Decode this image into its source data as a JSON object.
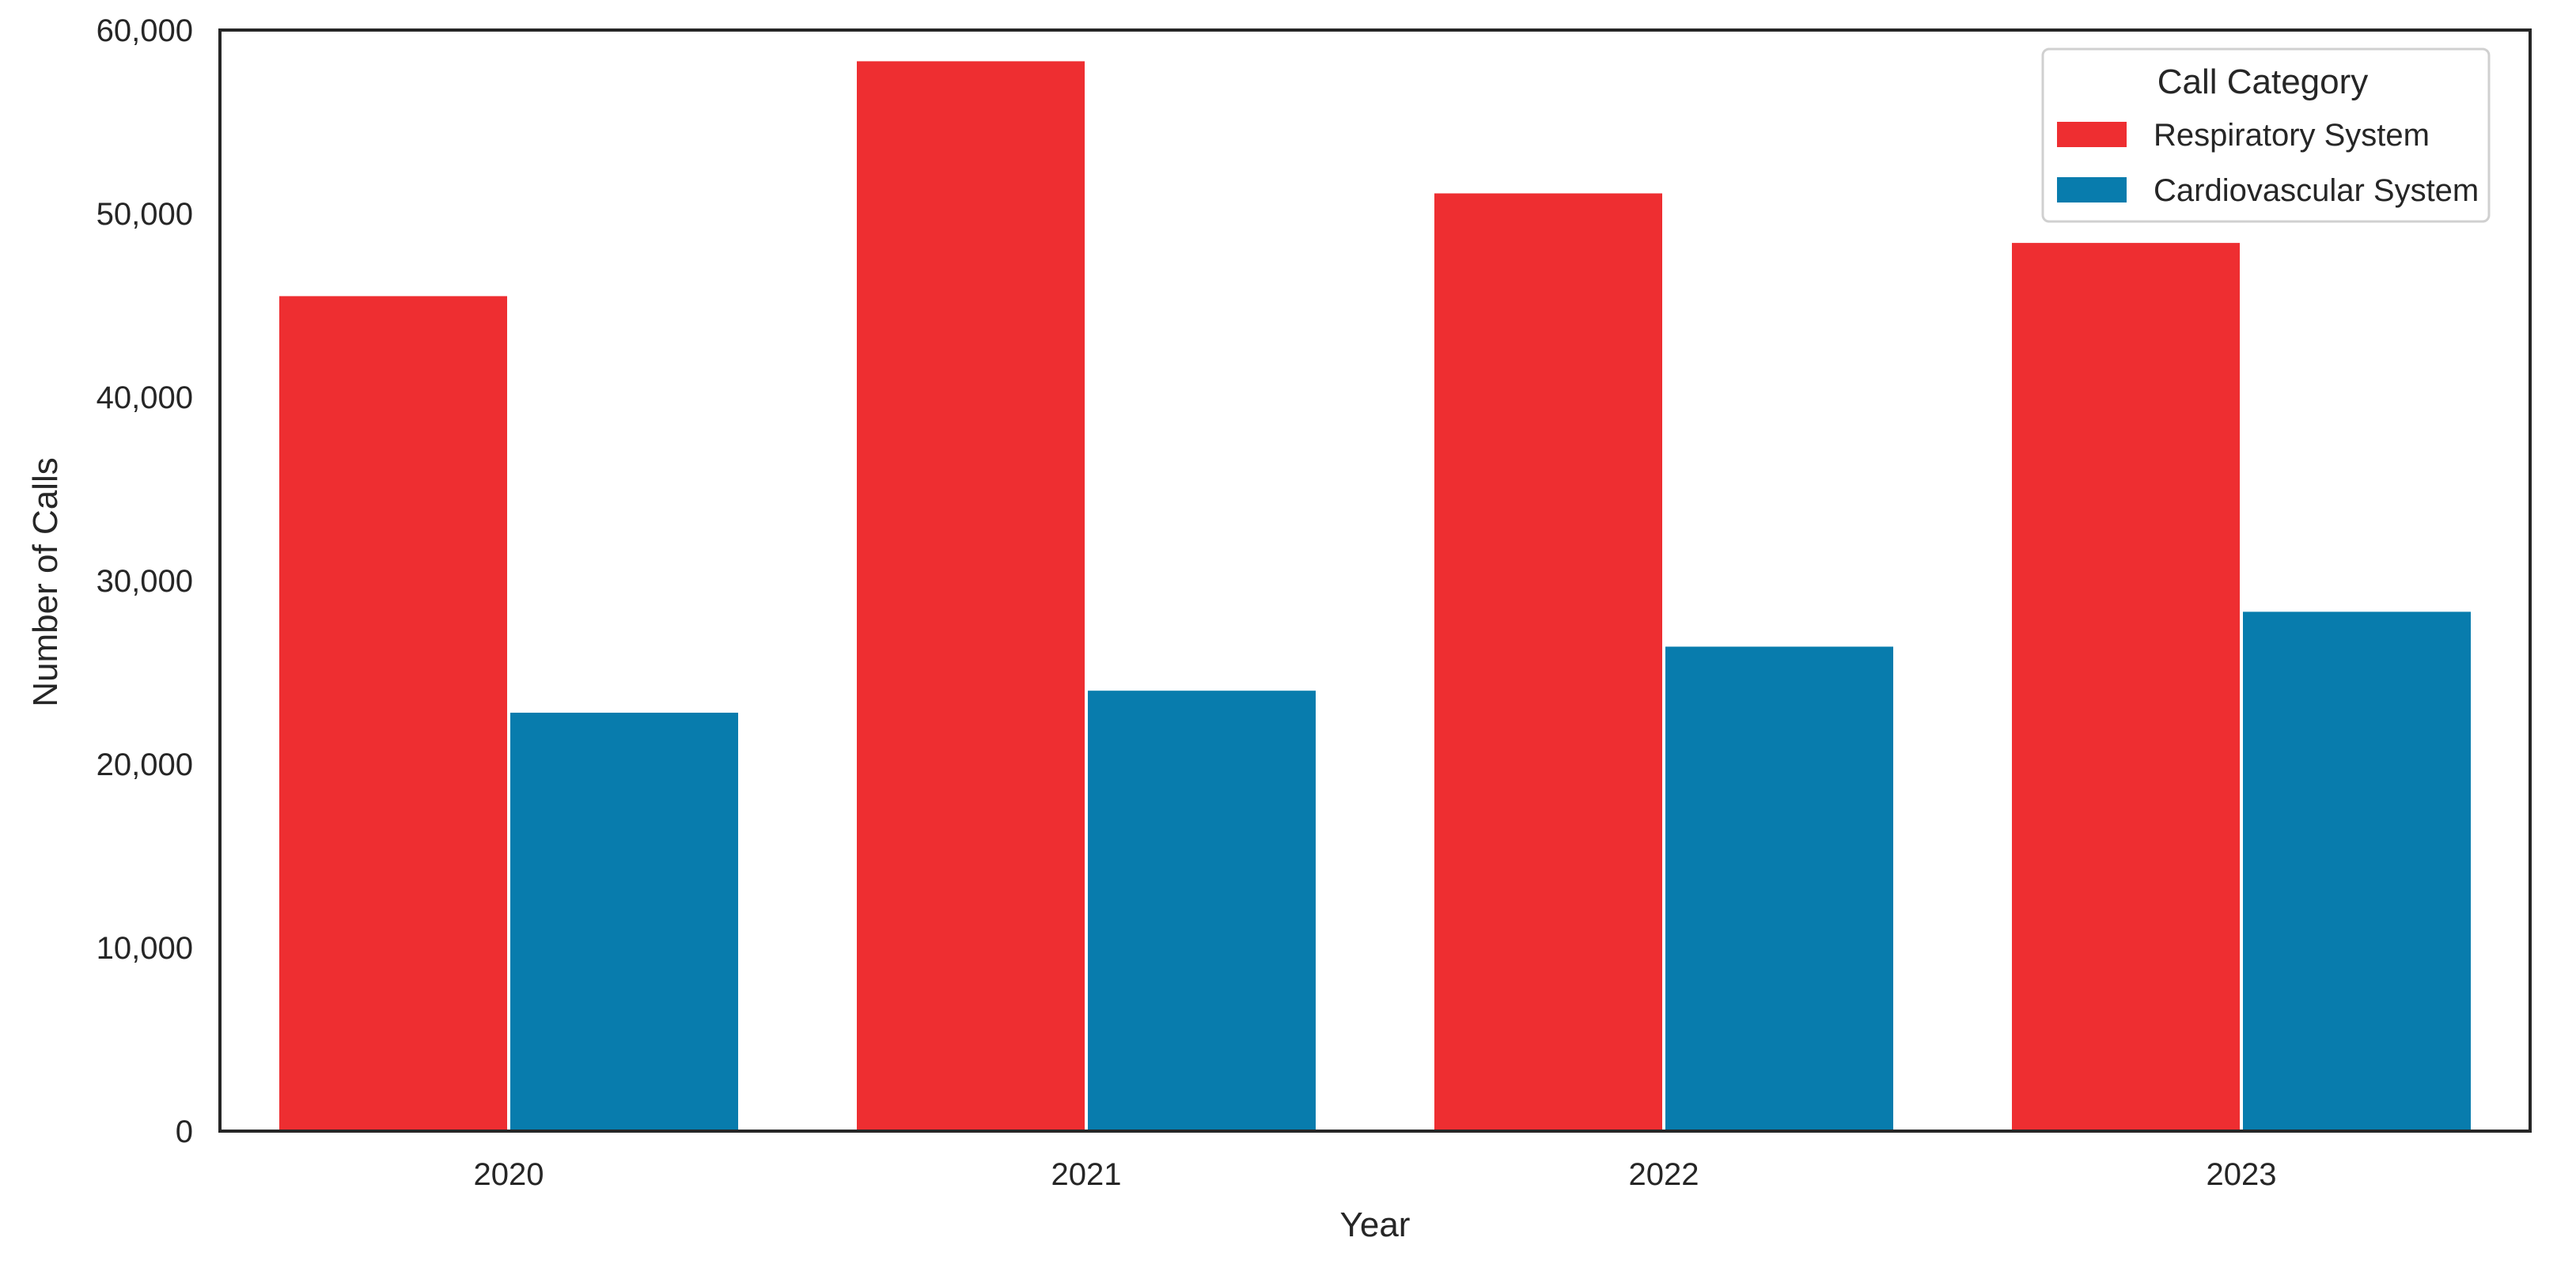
{
  "chart_data": {
    "type": "bar",
    "title": "",
    "xlabel": "Year",
    "ylabel": "Number of Calls",
    "categories": [
      "2020",
      "2021",
      "2022",
      "2023"
    ],
    "series": [
      {
        "name": "Respiratory System",
        "color": "#ee2e31",
        "values": [
          45500,
          58300,
          51100,
          48400
        ]
      },
      {
        "name": "Cardiovascular System",
        "color": "#087cad",
        "values": [
          22800,
          24000,
          26400,
          28300
        ]
      }
    ],
    "ylim": [
      0,
      60000
    ],
    "yticks": [
      0,
      10000,
      20000,
      30000,
      40000,
      50000,
      60000
    ],
    "ytick_labels": [
      "0",
      "10,000",
      "20,000",
      "30,000",
      "40,000",
      "50,000",
      "60,000"
    ],
    "grid": false,
    "legend": {
      "title": "Call Category",
      "position": "top-right"
    }
  }
}
